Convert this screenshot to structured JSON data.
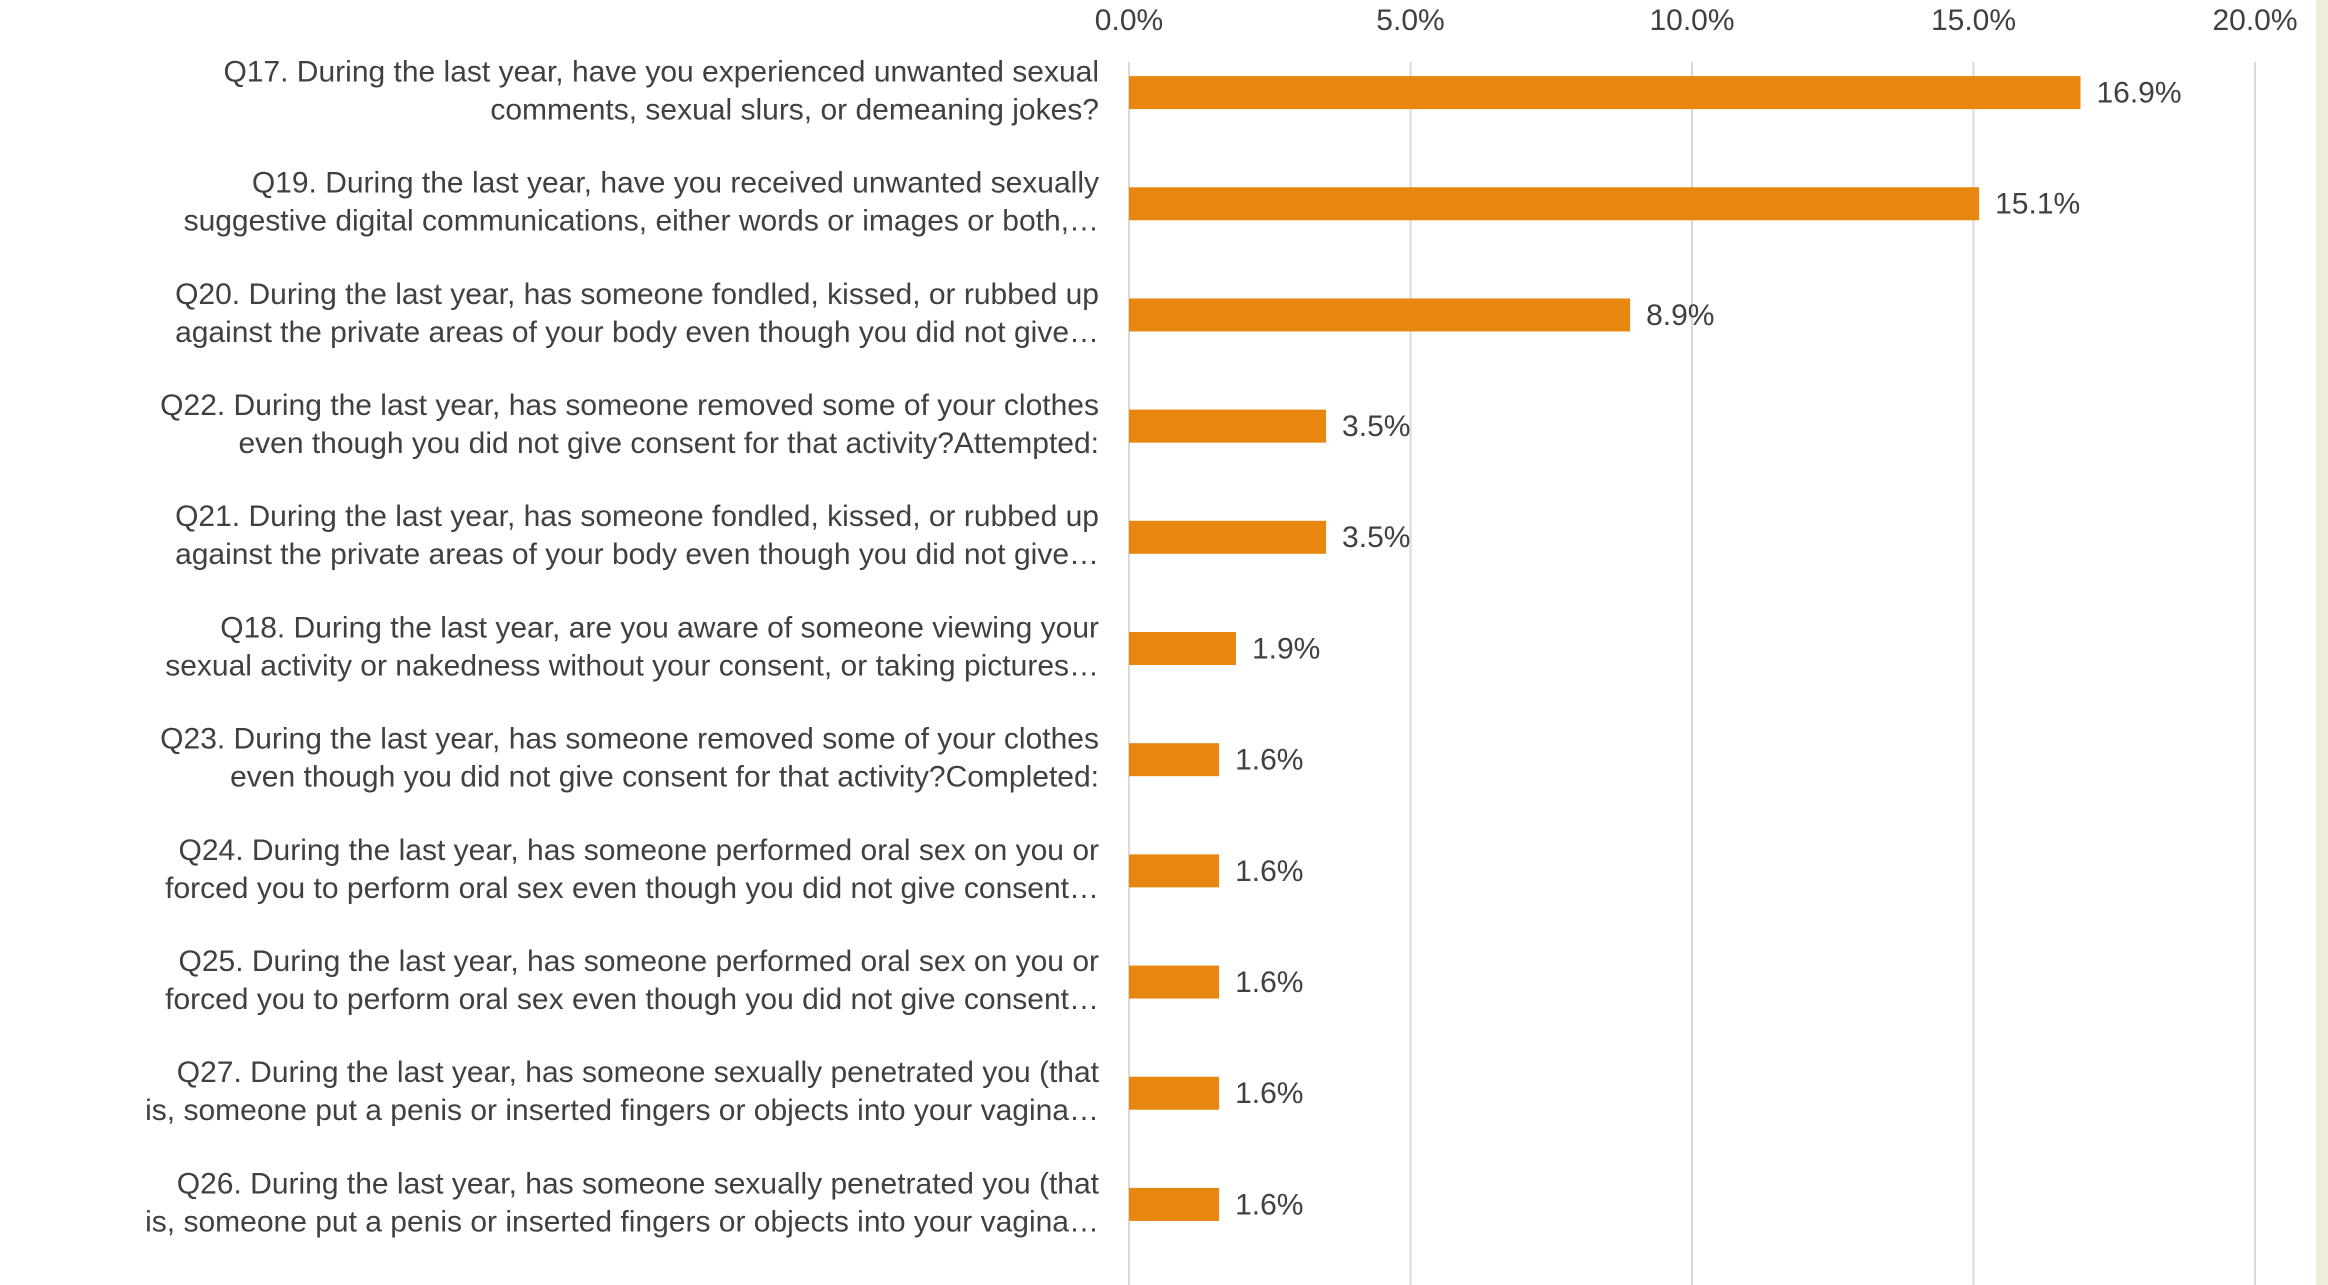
{
  "chart_data": {
    "type": "barh",
    "categories": [
      [
        "Q17. During the last year, have you experienced unwanted sexual",
        "comments, sexual slurs, or demeaning jokes?"
      ],
      [
        "Q19. During the last year, have you received unwanted sexually",
        "suggestive digital communications, either words or images or both,…"
      ],
      [
        "Q20. During the last year, has someone fondled, kissed, or rubbed up",
        "against the private areas of your body even though you did not give…"
      ],
      [
        "Q22. During the last year, has someone removed some of your clothes",
        "even though you did not give consent for that activity?Attempted:"
      ],
      [
        "Q21. During the last year, has someone fondled, kissed, or rubbed up",
        "against the private areas of your body even though you did not give…"
      ],
      [
        "Q18. During the last year, are you aware of someone viewing your",
        "sexual activity or nakedness without your consent, or taking pictures…"
      ],
      [
        "Q23. During the last year, has someone removed some of your clothes",
        "even though you did not give consent for that activity?Completed:"
      ],
      [
        "Q24. During the last year, has someone performed oral sex on you or",
        "forced you to perform oral sex even though you did not give consent…"
      ],
      [
        "Q25. During the last year, has someone performed oral sex on you or",
        "forced you to perform oral sex even though you did not give consent…"
      ],
      [
        "Q27. During the last year, has someone sexually penetrated you (that",
        "is, someone put a penis or inserted fingers or objects into your vagina…"
      ],
      [
        "Q26. During the last year, has someone sexually penetrated you (that",
        "is, someone put a penis or inserted fingers or objects into your vagina…"
      ]
    ],
    "values": [
      16.9,
      15.1,
      8.9,
      3.5,
      3.5,
      1.9,
      1.6,
      1.6,
      1.6,
      1.6,
      1.6
    ],
    "value_labels": [
      "16.9%",
      "15.1%",
      "8.9%",
      "3.5%",
      "3.5%",
      "1.9%",
      "1.6%",
      "1.6%",
      "1.6%",
      "1.6%",
      "1.6%"
    ],
    "color": "#e8870f",
    "xlim": [
      0,
      20
    ],
    "xticks": [
      {
        "value": 0,
        "label": "0.0%"
      },
      {
        "value": 5,
        "label": "5.0%"
      },
      {
        "value": 10,
        "label": "10.0%"
      },
      {
        "value": 15,
        "label": "15.0%"
      },
      {
        "value": 20,
        "label": "20.0%"
      }
    ],
    "grid": true
  }
}
